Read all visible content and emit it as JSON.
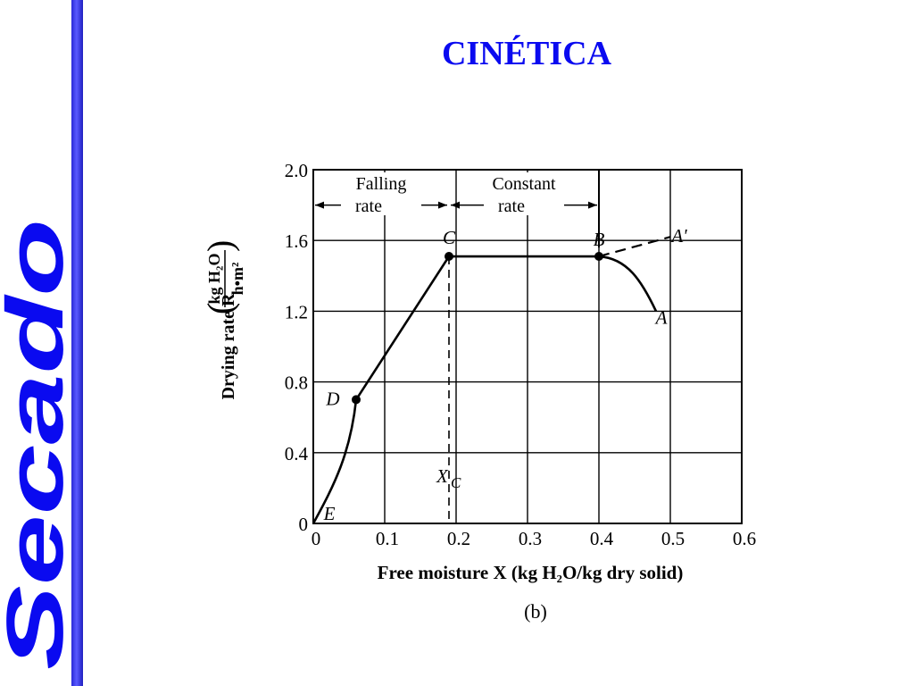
{
  "sidebar": {
    "label": "Secado",
    "color": "#0a0af0",
    "bar_color": "#3a3aee"
  },
  "slide": {
    "title": "CINÉTICA",
    "title_color": "#0a0af0"
  },
  "chart_data": {
    "type": "line",
    "caption": "(b)",
    "xlabel": "Free moisture X (kg H₂O/kg dry solid)",
    "ylabel": "Drying rate R",
    "ylabel_units_num": "kg H₂O",
    "ylabel_units_den": "h•m²",
    "xlim": [
      0,
      0.6
    ],
    "ylim": [
      0,
      2.0
    ],
    "x_ticks": [
      0,
      0.1,
      0.2,
      0.3,
      0.4,
      0.5,
      0.6
    ],
    "x_tick_labels": [
      "0",
      "0.1",
      "0.2",
      "0.3",
      "0.4",
      "0.5",
      "0.6"
    ],
    "y_ticks": [
      0,
      0.4,
      0.8,
      1.2,
      1.6,
      2.0
    ],
    "y_tick_labels": [
      "0",
      "0.4",
      "0.8",
      "1.2",
      "1.6",
      "2.0"
    ],
    "grid": true,
    "region_labels": [
      {
        "line1": "Falling",
        "line2": "rate",
        "x_from": 0,
        "x_to": 0.19
      },
      {
        "line1": "Constant",
        "line2": "rate",
        "x_from": 0.19,
        "x_to": 0.4
      }
    ],
    "critical_moisture": {
      "label": "X",
      "subscript": "C",
      "x": 0.19
    },
    "points": [
      {
        "name": "E",
        "x": 0.0,
        "y": 0.0,
        "marker": false
      },
      {
        "name": "D",
        "x": 0.06,
        "y": 0.7,
        "marker": true
      },
      {
        "name": "C",
        "x": 0.19,
        "y": 1.51,
        "marker": true
      },
      {
        "name": "B",
        "x": 0.4,
        "y": 1.51,
        "marker": true
      },
      {
        "name": "A",
        "x": 0.48,
        "y": 1.2,
        "marker": false
      },
      {
        "name": "A'",
        "x": 0.5,
        "y": 1.62,
        "marker": false
      }
    ],
    "series": [
      {
        "style": "solid",
        "x": [
          0.0,
          0.02,
          0.04,
          0.055,
          0.06
        ],
        "y": [
          0.0,
          0.16,
          0.36,
          0.58,
          0.7
        ]
      },
      {
        "style": "solid",
        "x": [
          0.06,
          0.19,
          0.4
        ],
        "y": [
          0.7,
          1.51,
          1.51
        ]
      },
      {
        "style": "solid",
        "x": [
          0.4,
          0.43,
          0.46,
          0.48
        ],
        "y": [
          1.51,
          1.45,
          1.33,
          1.2
        ]
      },
      {
        "style": "dashed",
        "x": [
          0.4,
          0.5
        ],
        "y": [
          1.51,
          1.62
        ]
      }
    ]
  }
}
